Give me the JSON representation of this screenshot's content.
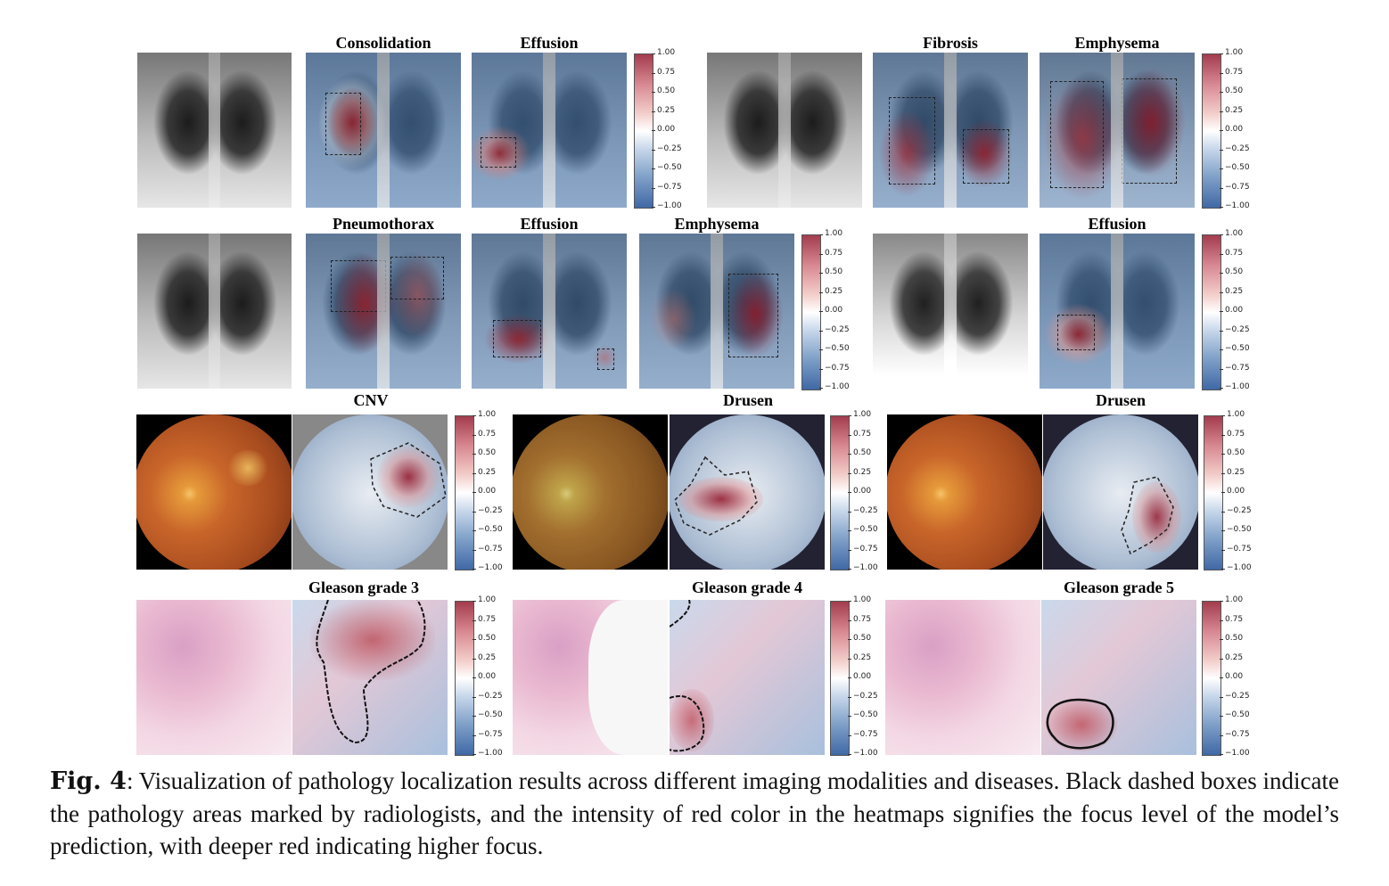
{
  "figure": {
    "rows": [
      {
        "group_titles": [
          "Consolidation",
          "Effusion",
          "Fibrosis",
          "Emphysema"
        ]
      },
      {
        "group_titles": [
          "Pneumothorax",
          "Effusion",
          "Emphysema",
          "Effusion"
        ]
      },
      {
        "group_titles": [
          "CNV",
          "Drusen",
          "Drusen"
        ]
      },
      {
        "group_titles": [
          "Gleason grade 3",
          "Gleason grade 4",
          "Gleason grade 5"
        ]
      }
    ],
    "colorbar_ticks": [
      "1.00",
      "0.75",
      "0.50",
      "0.25",
      "0.00",
      "−0.25",
      "−0.50",
      "−0.75",
      "−1.00"
    ]
  },
  "caption": {
    "label": "Fig. 4",
    "text": ": Visualization of pathology localization results across different imaging modalities and diseases. Black dashed boxes indicate the pathology areas marked by radiologists, and the intensity of red color in the heatmaps signifies the focus level of the model’s prediction, with deeper red indicating higher focus."
  },
  "colors": {
    "heat_high": "#a33c4e",
    "heat_mid": "#ffffff",
    "heat_low": "#3f68a5"
  }
}
